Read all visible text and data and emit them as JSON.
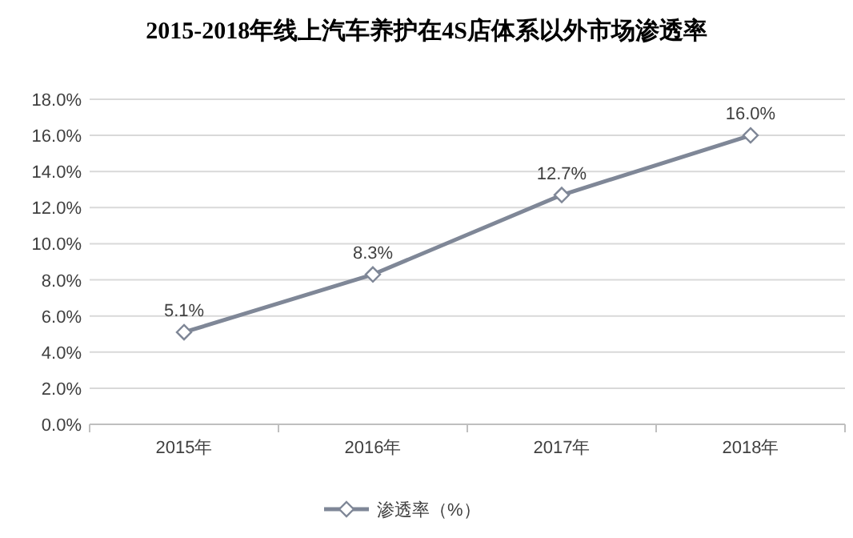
{
  "chart_data": {
    "type": "line",
    "title": "2015-2018年线上汽车养护在4S店体系以外市场渗透率",
    "categories": [
      "2015年",
      "2016年",
      "2017年",
      "2018年"
    ],
    "series": [
      {
        "name": "渗透率（%）",
        "color": "#7f8797",
        "values": [
          5.1,
          8.3,
          12.7,
          16.0
        ],
        "value_labels": [
          "5.1%",
          "8.3%",
          "12.7%",
          "16.0%"
        ]
      }
    ],
    "ylim": [
      0,
      18
    ],
    "yticks": [
      {
        "value": 0,
        "label": "0.0%"
      },
      {
        "value": 2,
        "label": "2.0%"
      },
      {
        "value": 4,
        "label": "4.0%"
      },
      {
        "value": 6,
        "label": "6.0%"
      },
      {
        "value": 8,
        "label": "8.0%"
      },
      {
        "value": 10,
        "label": "10.0%"
      },
      {
        "value": 12,
        "label": "12.0%"
      },
      {
        "value": 14,
        "label": "14.0%"
      },
      {
        "value": 16,
        "label": "16.0%"
      },
      {
        "value": 18,
        "label": "18.0%"
      }
    ],
    "grid": "y",
    "legend": "bottom",
    "marker": "diamond",
    "line_style": "solid"
  }
}
